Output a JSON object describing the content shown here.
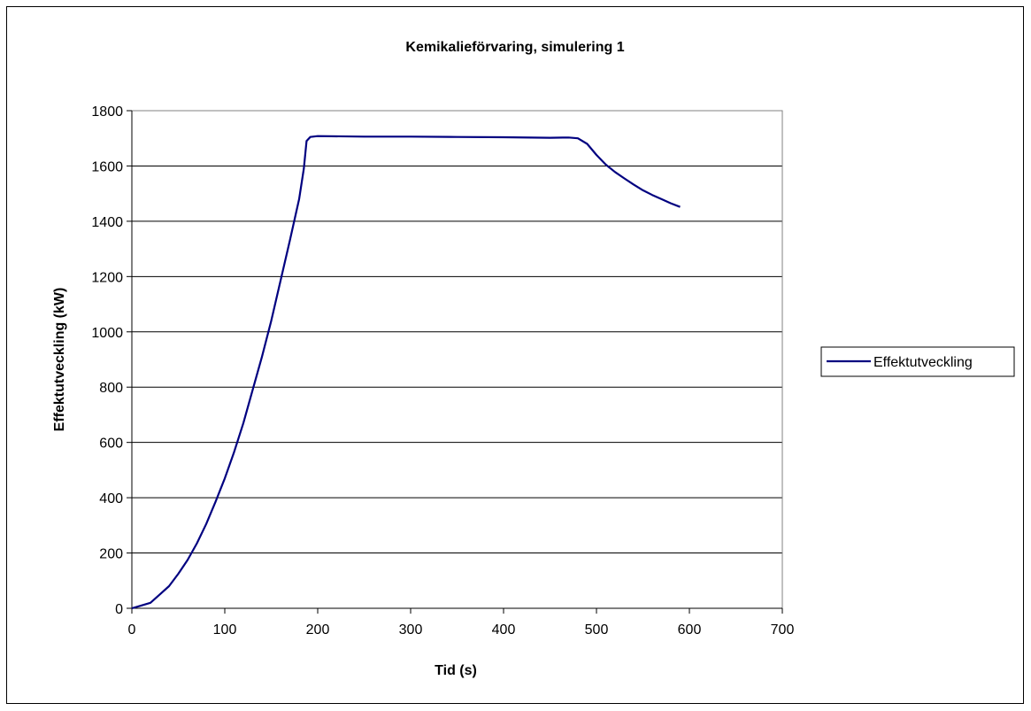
{
  "chart_data": {
    "type": "line",
    "title": "Kemikalieförvaring, simulering 1",
    "xlabel": "Tid (s)",
    "ylabel": "Effektutveckling (kW)",
    "xlim": [
      0,
      700
    ],
    "ylim": [
      0,
      1800
    ],
    "xticks": [
      "0",
      "100",
      "200",
      "300",
      "400",
      "500",
      "600",
      "700"
    ],
    "yticks": [
      "0",
      "200",
      "400",
      "600",
      "800",
      "1000",
      "1200",
      "1400",
      "1600",
      "1800"
    ],
    "grid": "horizontal",
    "legend_position": "right",
    "line_color": "#000080",
    "series": [
      {
        "name": "Effektutveckling",
        "x": [
          0,
          10,
          20,
          30,
          40,
          50,
          60,
          70,
          80,
          90,
          100,
          110,
          120,
          130,
          140,
          150,
          160,
          170,
          180,
          185,
          188,
          192,
          200,
          250,
          300,
          350,
          400,
          450,
          470,
          480,
          490,
          500,
          510,
          520,
          530,
          540,
          550,
          560,
          570,
          580,
          590
        ],
        "y": [
          0,
          10,
          20,
          50,
          80,
          125,
          175,
          235,
          305,
          385,
          470,
          565,
          670,
          790,
          910,
          1040,
          1185,
          1330,
          1480,
          1590,
          1690,
          1705,
          1708,
          1706,
          1706,
          1705,
          1704,
          1702,
          1703,
          1700,
          1680,
          1640,
          1605,
          1578,
          1555,
          1533,
          1512,
          1495,
          1480,
          1465,
          1452
        ]
      }
    ]
  }
}
